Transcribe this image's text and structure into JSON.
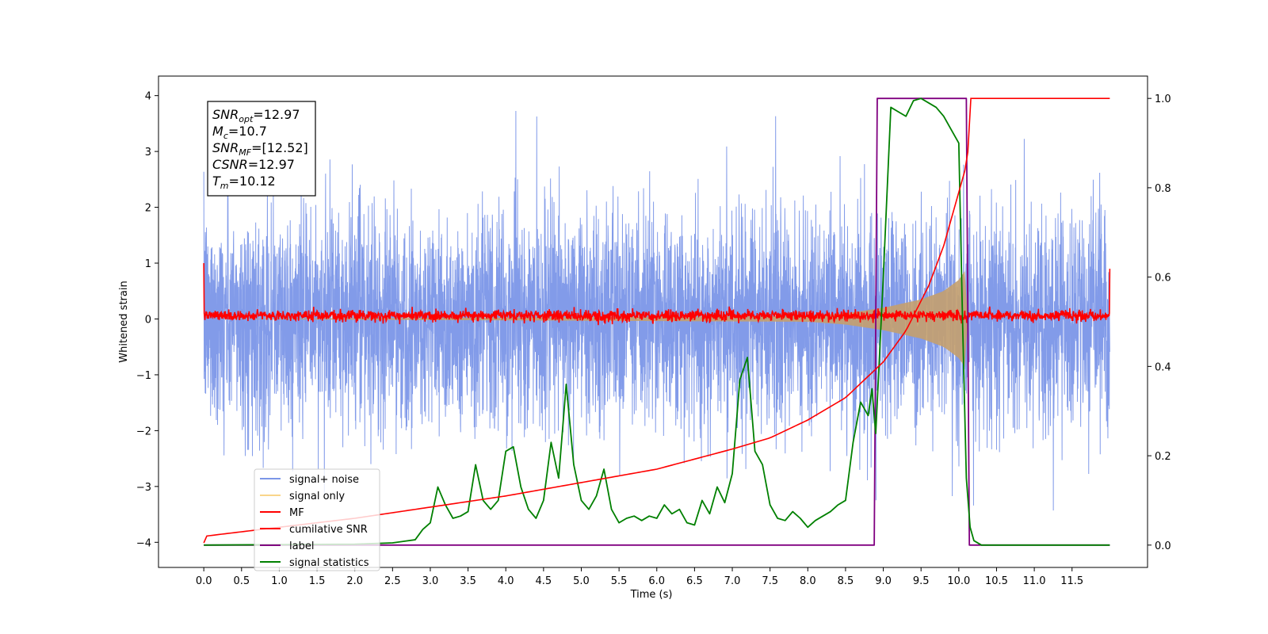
{
  "chart_data": {
    "type": "line",
    "xlabel": "Time (s)",
    "ylabel": "Whitened strain",
    "xlim": [
      -0.6,
      12.5
    ],
    "ylim_left": [
      -4.45,
      4.35
    ],
    "ylim_right": [
      -0.05,
      1.05
    ],
    "x_ticks": [
      "0.0",
      "0.5",
      "1.0",
      "1.5",
      "2.0",
      "2.5",
      "3.0",
      "3.5",
      "4.0",
      "4.5",
      "5.0",
      "5.5",
      "6.0",
      "6.5",
      "7.0",
      "7.5",
      "8.0",
      "8.5",
      "9.0",
      "9.5",
      "10.0",
      "10.5",
      "11.0",
      "11.5"
    ],
    "y_left_ticks": [
      "4",
      "3",
      "2",
      "1",
      "0",
      "−1",
      "−2",
      "−3",
      "−4"
    ],
    "y_right_ticks": [
      "1.0",
      "0.8",
      "0.6",
      "0.4",
      "0.2",
      "0.0"
    ],
    "annotation": [
      {
        "base": "SNR",
        "sub": "opt",
        "value": "=12.97"
      },
      {
        "base": "M",
        "sub": "c",
        "value": "=10.7"
      },
      {
        "base": "SNR",
        "sub": "MF",
        "value": "=[12.52]"
      },
      {
        "base": "CSNR",
        "sub": "",
        "value": "=12.97"
      },
      {
        "base": "T",
        "sub": "m",
        "value": "=10.12"
      }
    ],
    "legend": {
      "position": "lower-left",
      "entries": [
        {
          "label": "signal+ noise",
          "color": "#7b96e8"
        },
        {
          "label": "signal only",
          "color": "#f9d58a"
        },
        {
          "label": "MF",
          "color": "#ff0000"
        },
        {
          "label": "cumilative SNR",
          "color": "#ff0000"
        },
        {
          "label": "label",
          "color": "#800080"
        },
        {
          "label": "signal statistics",
          "color": "#008000"
        }
      ]
    },
    "series": [
      {
        "name": "signal+ noise",
        "axis": "left",
        "color": "#7b96e8",
        "description": "whitened noise with embedded chirp",
        "x_range": [
          0.0,
          12.0
        ],
        "typical_amplitude": [
          -2.5,
          2.5
        ],
        "extremes": [
          -4.15,
          3.95
        ]
      },
      {
        "name": "signal only",
        "axis": "left",
        "color": "#f9d58a",
        "description": "chirp envelope growing to merger",
        "envelope": {
          "x": [
            0.0,
            8.0,
            8.5,
            9.0,
            9.5,
            9.8,
            10.0,
            10.1,
            10.12
          ],
          "amp": [
            0.0,
            0.05,
            0.1,
            0.2,
            0.35,
            0.5,
            0.7,
            0.9,
            0.0
          ]
        }
      },
      {
        "name": "MF",
        "axis": "left",
        "color": "#ff0000",
        "description": "matched filter output near zero",
        "x_range": [
          0.0,
          12.0
        ],
        "typical_amplitude": [
          -0.1,
          0.25
        ],
        "edges": {
          "start": 1.0,
          "end": 0.9
        }
      },
      {
        "name": "cumilative SNR",
        "axis": "right",
        "color": "#ff0000",
        "x": [
          0.0,
          0.02,
          1.0,
          2.0,
          3.0,
          4.0,
          5.0,
          6.0,
          7.0,
          7.5,
          8.0,
          8.5,
          9.0,
          9.3,
          9.6,
          9.8,
          10.0,
          10.1,
          10.12,
          10.14,
          12.0
        ],
        "y": [
          0.005,
          0.02,
          0.04,
          0.06,
          0.085,
          0.11,
          0.14,
          0.17,
          0.215,
          0.24,
          0.28,
          0.33,
          0.41,
          0.48,
          0.58,
          0.67,
          0.79,
          0.85,
          0.88,
          1.0,
          1.0
        ]
      },
      {
        "name": "label",
        "axis": "right",
        "color": "#800080",
        "x": [
          0.0,
          8.88,
          8.92,
          10.1,
          10.14,
          12.0
        ],
        "y": [
          0.0,
          0.0,
          1.0,
          1.0,
          0.0,
          0.0
        ]
      },
      {
        "name": "signal statistics",
        "axis": "right",
        "color": "#008000",
        "x": [
          0.0,
          2.0,
          2.5,
          2.8,
          2.9,
          3.0,
          3.1,
          3.2,
          3.3,
          3.4,
          3.5,
          3.6,
          3.7,
          3.8,
          3.9,
          4.0,
          4.1,
          4.2,
          4.3,
          4.4,
          4.5,
          4.6,
          4.7,
          4.8,
          4.9,
          5.0,
          5.1,
          5.2,
          5.3,
          5.4,
          5.5,
          5.6,
          5.7,
          5.8,
          5.9,
          6.0,
          6.1,
          6.2,
          6.3,
          6.4,
          6.5,
          6.6,
          6.7,
          6.8,
          6.9,
          7.0,
          7.1,
          7.2,
          7.3,
          7.4,
          7.5,
          7.6,
          7.7,
          7.8,
          7.9,
          8.0,
          8.1,
          8.2,
          8.3,
          8.4,
          8.5,
          8.6,
          8.7,
          8.8,
          8.85,
          8.9,
          9.0,
          9.1,
          9.2,
          9.3,
          9.4,
          9.5,
          9.6,
          9.7,
          9.8,
          9.9,
          10.0,
          10.05,
          10.1,
          10.15,
          10.2,
          10.3,
          11.0,
          12.0
        ],
        "y": [
          0.0,
          0.002,
          0.005,
          0.012,
          0.035,
          0.05,
          0.13,
          0.09,
          0.06,
          0.065,
          0.075,
          0.18,
          0.1,
          0.08,
          0.1,
          0.21,
          0.22,
          0.13,
          0.08,
          0.06,
          0.1,
          0.23,
          0.15,
          0.36,
          0.18,
          0.1,
          0.08,
          0.11,
          0.17,
          0.08,
          0.05,
          0.06,
          0.065,
          0.055,
          0.065,
          0.06,
          0.09,
          0.07,
          0.08,
          0.05,
          0.045,
          0.1,
          0.07,
          0.13,
          0.095,
          0.16,
          0.37,
          0.42,
          0.21,
          0.18,
          0.09,
          0.06,
          0.055,
          0.075,
          0.06,
          0.04,
          0.055,
          0.065,
          0.075,
          0.09,
          0.1,
          0.23,
          0.32,
          0.29,
          0.35,
          0.25,
          0.6,
          0.98,
          0.97,
          0.96,
          0.995,
          1.0,
          0.99,
          0.98,
          0.96,
          0.93,
          0.9,
          0.5,
          0.15,
          0.04,
          0.01,
          0.0,
          0.0,
          0.0
        ]
      }
    ]
  }
}
